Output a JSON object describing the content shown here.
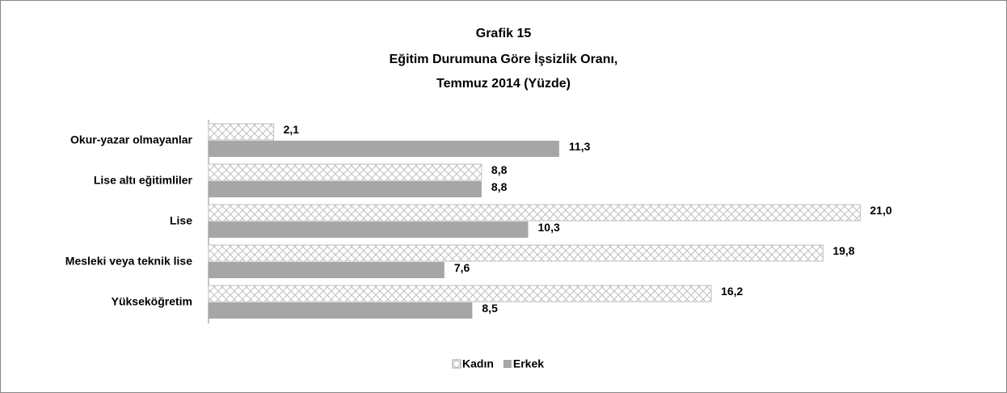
{
  "chart_data": {
    "type": "hbar",
    "title": "Grafik 15",
    "subtitle": [
      "Eğitim Durumuna Göre İşsizlik Oranı,",
      "Temmuz 2014 (Yüzde)"
    ],
    "categories": [
      "Okur-yazar olmayanlar",
      "Lise altı eğitimliler",
      "Lise",
      "Mesleki veya teknik lise",
      "Yükseköğretim"
    ],
    "series": [
      {
        "name": "Kadın",
        "color": "#bfbfbf",
        "pattern": "crosshatch",
        "values": [
          2.1,
          8.8,
          21.0,
          19.8,
          16.2
        ],
        "value_labels": [
          "2,1",
          "8,8",
          "21,0",
          "19,8",
          "16,2"
        ]
      },
      {
        "name": "Erkek",
        "color": "#a6a6a6",
        "values": [
          11.3,
          8.8,
          10.3,
          7.6,
          8.5
        ],
        "value_labels": [
          "11,3",
          "8,8",
          "10,3",
          "7,6",
          "8,5"
        ]
      }
    ],
    "legend": "bottom"
  }
}
